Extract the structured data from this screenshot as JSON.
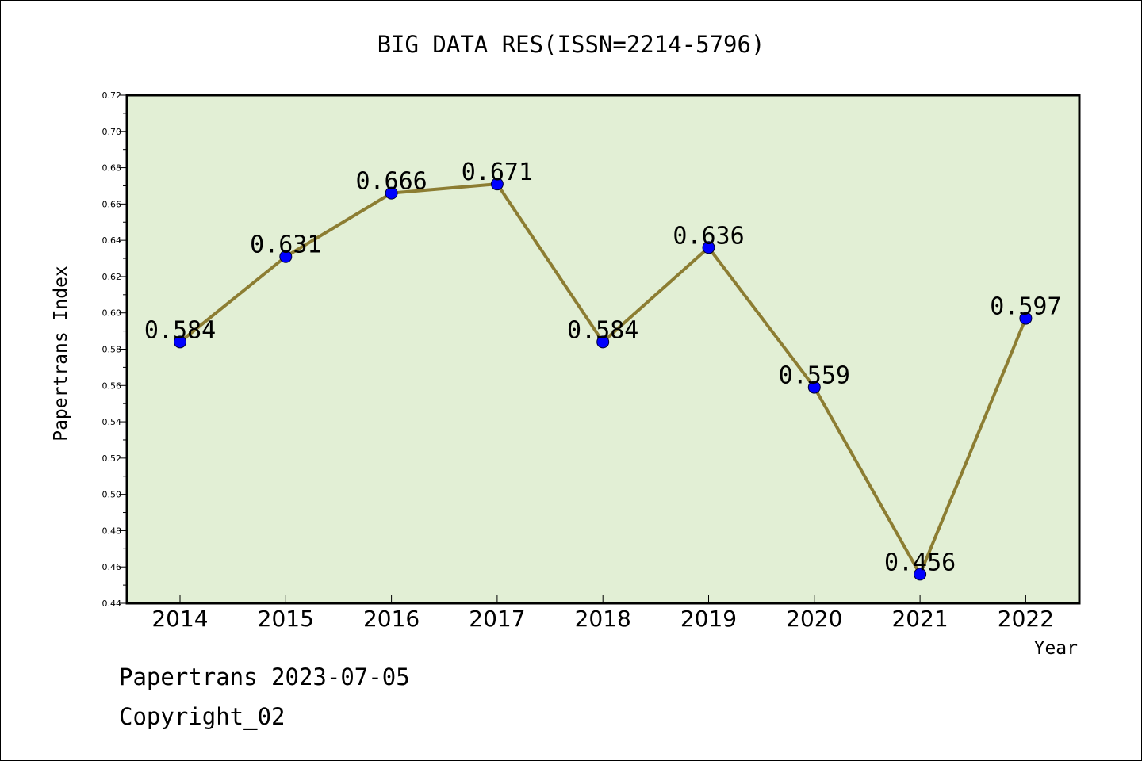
{
  "chart_data": {
    "type": "line",
    "title": "BIG DATA RES(ISSN=2214-5796)",
    "xlabel": "Year",
    "ylabel": "Papertrans Index",
    "categories": [
      "2014",
      "2015",
      "2016",
      "2017",
      "2018",
      "2019",
      "2020",
      "2021",
      "2022"
    ],
    "values": [
      0.584,
      0.631,
      0.666,
      0.671,
      0.584,
      0.636,
      0.559,
      0.456,
      0.597
    ],
    "data_labels": [
      "0.584",
      "0.631",
      "0.666",
      "0.671",
      "0.584",
      "0.636",
      "0.559",
      "0.456",
      "0.597"
    ],
    "ylim": [
      0.44,
      0.72
    ],
    "yticks": [
      "0.44",
      "0.46",
      "0.48",
      "0.50",
      "0.52",
      "0.54",
      "0.56",
      "0.58",
      "0.60",
      "0.62",
      "0.64",
      "0.66",
      "0.68",
      "0.70",
      "0.72"
    ],
    "grid": false,
    "legend": "none",
    "colors": {
      "plot_background": "#e2efd5",
      "line": "#8c7d32",
      "marker": "#0000ff",
      "axes": "#000000"
    }
  },
  "footer": {
    "line1": "Papertrans 2023-07-05",
    "line2": "Copyright_02"
  }
}
